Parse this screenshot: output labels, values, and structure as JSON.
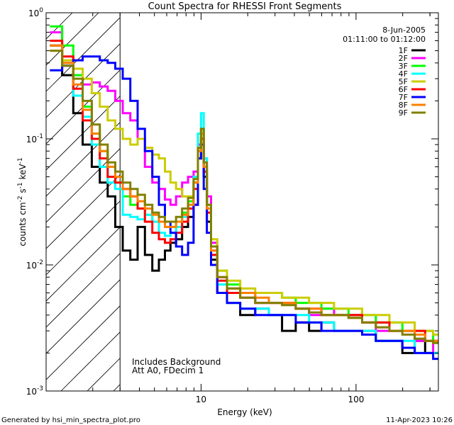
{
  "chart_data": {
    "type": "line",
    "title": "Count Spectra for RHESSI Front Segments",
    "xlabel": "Energy (keV)",
    "ylabel_parts": [
      "counts cm",
      "-2",
      " s",
      "-1",
      " keV",
      "-1"
    ],
    "xscale": "log",
    "yscale": "log",
    "xlim": [
      1.0,
      340.0
    ],
    "ylim": [
      0.001,
      1.0
    ],
    "x_ticks": [
      {
        "v": 10,
        "label": "10"
      },
      {
        "v": 100,
        "label": "100"
      }
    ],
    "y_ticks": [
      {
        "v": 0.001,
        "base": "10",
        "exp": "-3"
      },
      {
        "v": 0.01,
        "base": "10",
        "exp": "-2"
      },
      {
        "v": 0.1,
        "base": "10",
        "exp": "-1"
      },
      {
        "v": 1.0,
        "base": "10",
        "exp": "0"
      }
    ],
    "threshold_line_keV": 3.0,
    "info_lines": [
      "8-Jun-2005",
      "01:11:00 to 01:12:00"
    ],
    "annotations": [
      "Includes Background",
      "Att A0, FDecim 1"
    ],
    "footer_left": "Generated by hsi_min_spectra_plot.pro",
    "footer_right": "11-Apr-2023 10:26",
    "series": [
      {
        "name": "1F",
        "color": "#000000",
        "x": [
          1.15,
          1.4,
          1.6,
          1.85,
          2.1,
          2.35,
          2.65,
          2.95,
          3.3,
          3.7,
          4.1,
          4.6,
          5.1,
          5.6,
          6.1,
          6.6,
          7.2,
          7.9,
          8.6,
          9.3,
          9.8,
          10.2,
          10.6,
          11.2,
          12,
          13.5,
          16,
          20,
          25,
          30,
          37,
          45,
          55,
          65,
          80,
          100,
          120,
          150,
          180,
          220,
          260,
          300,
          330
        ],
        "y": [
          0.55,
          0.32,
          0.16,
          0.09,
          0.06,
          0.045,
          0.035,
          0.02,
          0.013,
          0.011,
          0.02,
          0.012,
          0.009,
          0.011,
          0.013,
          0.015,
          0.016,
          0.02,
          0.024,
          0.03,
          0.07,
          0.1,
          0.05,
          0.022,
          0.011,
          0.006,
          0.005,
          0.004,
          0.0045,
          0.004,
          0.003,
          0.0035,
          0.003,
          0.0035,
          0.003,
          0.003,
          0.003,
          0.0025,
          0.0025,
          0.002,
          0.0025,
          0.002,
          0.002
        ]
      },
      {
        "name": "2F",
        "color": "#ff00ff",
        "x": [
          1.15,
          1.4,
          1.6,
          1.85,
          2.1,
          2.35,
          2.65,
          2.95,
          3.3,
          3.7,
          4.1,
          4.6,
          5.1,
          5.6,
          6.1,
          6.6,
          7.2,
          7.9,
          8.6,
          9.3,
          9.8,
          10.2,
          10.6,
          11.2,
          12,
          13.5,
          16,
          20,
          25,
          30,
          37,
          45,
          55,
          65,
          80,
          100,
          120,
          150,
          180,
          220,
          260,
          300,
          330
        ],
        "y": [
          0.7,
          0.4,
          0.32,
          0.27,
          0.28,
          0.26,
          0.24,
          0.2,
          0.16,
          0.14,
          0.1,
          0.06,
          0.045,
          0.04,
          0.033,
          0.03,
          0.035,
          0.045,
          0.05,
          0.055,
          0.09,
          0.12,
          0.07,
          0.035,
          0.015,
          0.008,
          0.006,
          0.006,
          0.005,
          0.005,
          0.005,
          0.0045,
          0.004,
          0.0045,
          0.004,
          0.004,
          0.0035,
          0.003,
          0.003,
          0.003,
          0.0025,
          0.0025,
          0.002
        ]
      },
      {
        "name": "3F",
        "color": "#00ff00",
        "x": [
          1.15,
          1.4,
          1.6,
          1.85,
          2.1,
          2.35,
          2.65,
          2.95,
          3.3,
          3.7,
          4.1,
          4.6,
          5.1,
          5.6,
          6.1,
          6.6,
          7.2,
          7.9,
          8.6,
          9.3,
          9.8,
          10.2,
          10.6,
          11.2,
          12,
          13.5,
          16,
          20,
          25,
          30,
          37,
          45,
          55,
          65,
          80,
          100,
          120,
          150,
          180,
          220,
          260,
          300,
          330
        ],
        "y": [
          0.78,
          0.55,
          0.32,
          0.18,
          0.11,
          0.08,
          0.06,
          0.045,
          0.035,
          0.03,
          0.028,
          0.025,
          0.022,
          0.022,
          0.02,
          0.02,
          0.022,
          0.026,
          0.032,
          0.045,
          0.08,
          0.12,
          0.06,
          0.03,
          0.014,
          0.009,
          0.007,
          0.006,
          0.006,
          0.006,
          0.0055,
          0.005,
          0.005,
          0.0045,
          0.0045,
          0.004,
          0.004,
          0.0035,
          0.0035,
          0.003,
          0.003,
          0.003,
          0.0025
        ]
      },
      {
        "name": "4F",
        "color": "#00ffff",
        "x": [
          1.15,
          1.4,
          1.6,
          1.85,
          2.1,
          2.35,
          2.65,
          2.95,
          3.3,
          3.7,
          4.1,
          4.6,
          5.1,
          5.6,
          6.1,
          6.6,
          7.2,
          7.9,
          8.6,
          9.3,
          9.8,
          10.2,
          10.6,
          11.2,
          12,
          13.5,
          16,
          20,
          25,
          30,
          37,
          45,
          55,
          65,
          80,
          100,
          120,
          150,
          180,
          220,
          260,
          300,
          330
        ],
        "y": [
          0.6,
          0.4,
          0.22,
          0.15,
          0.09,
          0.06,
          0.045,
          0.04,
          0.025,
          0.024,
          0.023,
          0.025,
          0.022,
          0.018,
          0.017,
          0.018,
          0.02,
          0.024,
          0.03,
          0.05,
          0.11,
          0.16,
          0.07,
          0.028,
          0.012,
          0.007,
          0.005,
          0.0045,
          0.0045,
          0.004,
          0.004,
          0.004,
          0.0035,
          0.0035,
          0.003,
          0.003,
          0.003,
          0.0025,
          0.0025,
          0.0025,
          0.002,
          0.002,
          0.002
        ]
      },
      {
        "name": "5F",
        "color": "#cccc00",
        "x": [
          1.15,
          1.4,
          1.6,
          1.85,
          2.1,
          2.35,
          2.65,
          2.95,
          3.3,
          3.7,
          4.1,
          4.6,
          5.1,
          5.6,
          6.1,
          6.6,
          7.2,
          7.9,
          8.6,
          9.3,
          9.8,
          10.2,
          10.6,
          11.2,
          12,
          13.5,
          16,
          20,
          25,
          30,
          37,
          45,
          55,
          65,
          80,
          100,
          120,
          150,
          180,
          220,
          260,
          300,
          330
        ],
        "y": [
          0.5,
          0.42,
          0.36,
          0.3,
          0.23,
          0.18,
          0.14,
          0.12,
          0.1,
          0.09,
          0.1,
          0.085,
          0.075,
          0.07,
          0.055,
          0.045,
          0.04,
          0.035,
          0.035,
          0.045,
          0.08,
          0.11,
          0.06,
          0.03,
          0.016,
          0.009,
          0.0075,
          0.0065,
          0.006,
          0.006,
          0.0055,
          0.0055,
          0.005,
          0.005,
          0.0045,
          0.0045,
          0.004,
          0.004,
          0.0035,
          0.0035,
          0.003,
          0.003,
          0.0028
        ]
      },
      {
        "name": "6F",
        "color": "#ff0000",
        "x": [
          1.15,
          1.4,
          1.6,
          1.85,
          2.1,
          2.35,
          2.65,
          2.95,
          3.3,
          3.7,
          4.1,
          4.6,
          5.1,
          5.6,
          6.1,
          6.6,
          7.2,
          7.9,
          8.6,
          9.3,
          9.8,
          10.2,
          10.6,
          11.2,
          12,
          13.5,
          16,
          20,
          25,
          30,
          37,
          45,
          55,
          65,
          80,
          100,
          120,
          150,
          180,
          220,
          260,
          300,
          330
        ],
        "y": [
          0.6,
          0.45,
          0.25,
          0.14,
          0.1,
          0.07,
          0.05,
          0.045,
          0.04,
          0.035,
          0.028,
          0.022,
          0.018,
          0.016,
          0.015,
          0.016,
          0.018,
          0.022,
          0.028,
          0.04,
          0.07,
          0.1,
          0.055,
          0.026,
          0.012,
          0.0075,
          0.006,
          0.0055,
          0.005,
          0.005,
          0.005,
          0.0045,
          0.0045,
          0.004,
          0.004,
          0.004,
          0.0035,
          0.0035,
          0.003,
          0.003,
          0.003,
          0.0025,
          0.0025
        ]
      },
      {
        "name": "7F",
        "color": "#0000ff",
        "x": [
          1.15,
          1.4,
          1.6,
          1.85,
          2.1,
          2.35,
          2.65,
          2.95,
          3.3,
          3.7,
          4.1,
          4.6,
          5.1,
          5.6,
          6.1,
          6.6,
          7.2,
          7.9,
          8.6,
          9.3,
          9.8,
          10.2,
          10.6,
          11.2,
          12,
          13.5,
          16,
          20,
          25,
          30,
          37,
          45,
          55,
          65,
          80,
          100,
          120,
          150,
          180,
          220,
          260,
          300,
          330
        ],
        "y": [
          0.35,
          0.38,
          0.42,
          0.45,
          0.45,
          0.42,
          0.4,
          0.36,
          0.3,
          0.2,
          0.12,
          0.08,
          0.05,
          0.03,
          0.022,
          0.018,
          0.014,
          0.012,
          0.015,
          0.03,
          0.07,
          0.09,
          0.04,
          0.018,
          0.01,
          0.006,
          0.005,
          0.0045,
          0.004,
          0.004,
          0.004,
          0.0035,
          0.0035,
          0.003,
          0.003,
          0.003,
          0.0028,
          0.0025,
          0.0025,
          0.0022,
          0.002,
          0.002,
          0.0018
        ]
      },
      {
        "name": "8F",
        "color": "#ff7f00",
        "x": [
          1.15,
          1.4,
          1.6,
          1.85,
          2.1,
          2.35,
          2.65,
          2.95,
          3.3,
          3.7,
          4.1,
          4.6,
          5.1,
          5.6,
          6.1,
          6.6,
          7.2,
          7.9,
          8.6,
          9.3,
          9.8,
          10.2,
          10.6,
          11.2,
          12,
          13.5,
          16,
          20,
          25,
          30,
          37,
          45,
          55,
          65,
          80,
          100,
          120,
          150,
          180,
          220,
          260,
          300,
          330
        ],
        "y": [
          0.55,
          0.4,
          0.27,
          0.17,
          0.11,
          0.08,
          0.06,
          0.05,
          0.04,
          0.035,
          0.032,
          0.028,
          0.025,
          0.022,
          0.02,
          0.02,
          0.022,
          0.025,
          0.03,
          0.045,
          0.08,
          0.11,
          0.06,
          0.028,
          0.013,
          0.008,
          0.0065,
          0.006,
          0.0055,
          0.005,
          0.005,
          0.0045,
          0.0045,
          0.004,
          0.004,
          0.0038,
          0.0035,
          0.0032,
          0.003,
          0.003,
          0.0028,
          0.0025,
          0.0025
        ]
      },
      {
        "name": "9F",
        "color": "#808000",
        "x": [
          1.15,
          1.4,
          1.6,
          1.85,
          2.1,
          2.35,
          2.65,
          2.95,
          3.3,
          3.7,
          4.1,
          4.6,
          5.1,
          5.6,
          6.1,
          6.6,
          7.2,
          7.9,
          8.6,
          9.3,
          9.8,
          10.2,
          10.6,
          11.2,
          12,
          13.5,
          16,
          20,
          25,
          30,
          37,
          45,
          55,
          65,
          80,
          100,
          120,
          150,
          180,
          220,
          260,
          300,
          330
        ],
        "y": [
          0.5,
          0.38,
          0.3,
          0.2,
          0.13,
          0.09,
          0.065,
          0.055,
          0.045,
          0.04,
          0.036,
          0.03,
          0.026,
          0.024,
          0.022,
          0.022,
          0.024,
          0.028,
          0.034,
          0.048,
          0.085,
          0.12,
          0.065,
          0.03,
          0.014,
          0.008,
          0.0065,
          0.0055,
          0.005,
          0.005,
          0.0048,
          0.0045,
          0.0042,
          0.004,
          0.004,
          0.0038,
          0.0035,
          0.0032,
          0.003,
          0.0028,
          0.0026,
          0.0025,
          0.0024
        ]
      }
    ]
  }
}
